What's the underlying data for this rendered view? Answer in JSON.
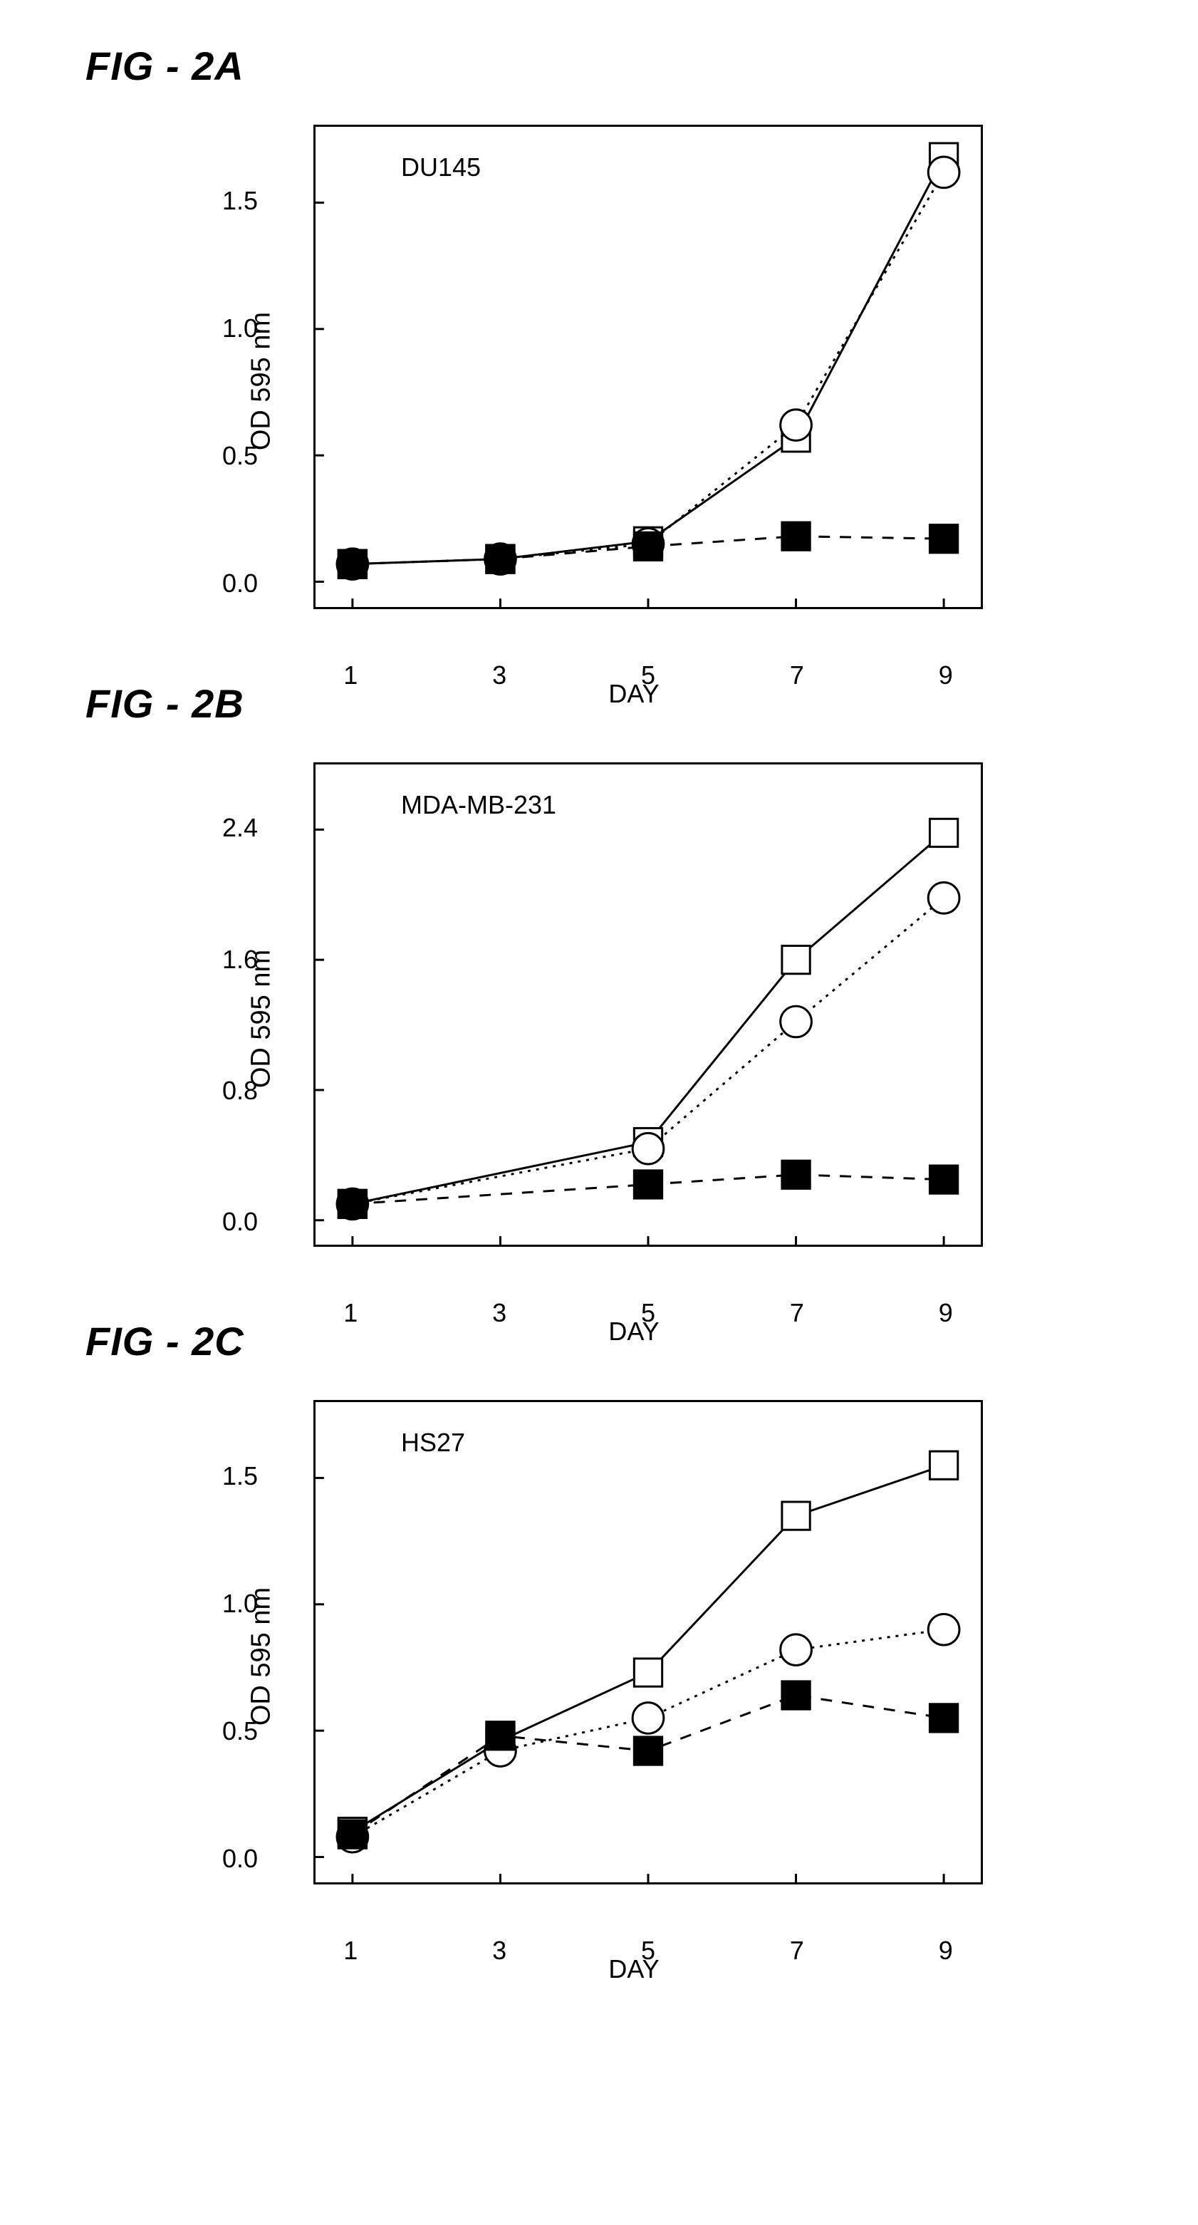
{
  "figures": [
    {
      "title": "FIG - 2A",
      "chart": {
        "type": "line",
        "inner_label": "DU145",
        "xlabel": "DAY",
        "ylabel": "OD 595 nm",
        "x_values": [
          1,
          3,
          5,
          7,
          9
        ],
        "xlim": [
          0.5,
          9.5
        ],
        "ylim": [
          -0.1,
          1.8
        ],
        "yticks": [
          0.0,
          0.5,
          1.0,
          1.5
        ],
        "ytick_labels": [
          "0.0",
          "0.5",
          "1.0",
          "1.5"
        ],
        "xtick_labels": [
          "1",
          "3",
          "5",
          "7",
          "9"
        ],
        "background_color": "#ffffff",
        "border_color": "#000000",
        "label_fontsize": 38,
        "tick_fontsize": 36,
        "inner_label_fontsize": 36,
        "marker_size": 22,
        "line_width": 3,
        "series": [
          {
            "marker": "open-square",
            "line_style": "solid",
            "color": "#000000",
            "fill": "#ffffff",
            "values": [
              0.07,
              0.09,
              0.16,
              0.57,
              1.68
            ]
          },
          {
            "marker": "open-circle",
            "line_style": "dotted",
            "color": "#000000",
            "fill": "#ffffff",
            "values": [
              0.07,
              0.09,
              0.15,
              0.62,
              1.62
            ]
          },
          {
            "marker": "filled-square",
            "line_style": "dashed",
            "color": "#000000",
            "fill": "#000000",
            "values": [
              0.07,
              0.09,
              0.14,
              0.18,
              0.17
            ]
          }
        ]
      }
    },
    {
      "title": "FIG - 2B",
      "chart": {
        "type": "line",
        "inner_label": "MDA-MB-231",
        "xlabel": "DAY",
        "ylabel": "OD 595 nm",
        "x_values": [
          1,
          3,
          5,
          7,
          9
        ],
        "xlim": [
          0.5,
          9.5
        ],
        "ylim": [
          -0.15,
          2.8
        ],
        "yticks": [
          0.0,
          0.8,
          1.6,
          2.4
        ],
        "ytick_labels": [
          "0.0",
          "0.8",
          "1.6",
          "2.4"
        ],
        "xtick_labels": [
          "1",
          "3",
          "5",
          "7",
          "9"
        ],
        "background_color": "#ffffff",
        "border_color": "#000000",
        "label_fontsize": 38,
        "tick_fontsize": 36,
        "inner_label_fontsize": 36,
        "marker_size": 22,
        "line_width": 3,
        "series": [
          {
            "marker": "open-square",
            "line_style": "solid",
            "color": "#000000",
            "fill": "#ffffff",
            "values": [
              0.1,
              null,
              0.48,
              1.6,
              2.38
            ]
          },
          {
            "marker": "open-circle",
            "line_style": "dotted",
            "color": "#000000",
            "fill": "#ffffff",
            "values": [
              0.1,
              null,
              0.44,
              1.22,
              1.98
            ]
          },
          {
            "marker": "filled-square",
            "line_style": "dashed",
            "color": "#000000",
            "fill": "#000000",
            "values": [
              0.1,
              null,
              0.22,
              0.28,
              0.25
            ]
          }
        ]
      }
    },
    {
      "title": "FIG - 2C",
      "chart": {
        "type": "line",
        "inner_label": "HS27",
        "xlabel": "DAY",
        "ylabel": "OD 595 nm",
        "x_values": [
          1,
          3,
          5,
          7,
          9
        ],
        "xlim": [
          0.5,
          9.5
        ],
        "ylim": [
          -0.1,
          1.8
        ],
        "yticks": [
          0.0,
          0.5,
          1.0,
          1.5
        ],
        "ytick_labels": [
          "0.0",
          "0.5",
          "1.0",
          "1.5"
        ],
        "xtick_labels": [
          "1",
          "3",
          "5",
          "7",
          "9"
        ],
        "background_color": "#ffffff",
        "border_color": "#000000",
        "label_fontsize": 38,
        "tick_fontsize": 36,
        "inner_label_fontsize": 36,
        "marker_size": 22,
        "line_width": 3,
        "series": [
          {
            "marker": "open-square",
            "line_style": "solid",
            "color": "#000000",
            "fill": "#ffffff",
            "values": [
              0.1,
              0.46,
              0.73,
              1.35,
              1.55
            ]
          },
          {
            "marker": "open-circle",
            "line_style": "dotted",
            "color": "#000000",
            "fill": "#ffffff",
            "values": [
              0.08,
              0.42,
              0.55,
              0.82,
              0.9
            ]
          },
          {
            "marker": "filled-square",
            "line_style": "dashed",
            "color": "#000000",
            "fill": "#000000",
            "values": [
              0.09,
              0.48,
              0.42,
              0.64,
              0.55
            ]
          }
        ]
      }
    }
  ]
}
